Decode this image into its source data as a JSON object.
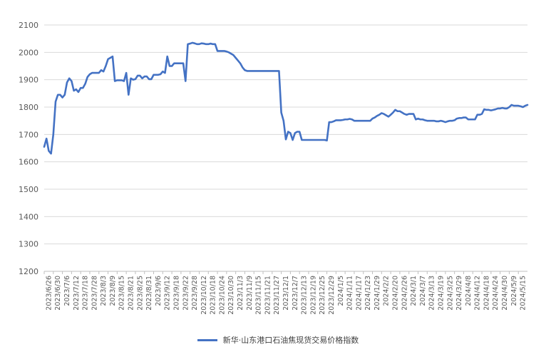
{
  "chart_data": {
    "type": "line",
    "title": "",
    "xlabel": "",
    "ylabel": "",
    "ylim": [
      1200,
      2100
    ],
    "yticks": [
      1200,
      1300,
      1400,
      1500,
      1600,
      1700,
      1800,
      1900,
      2000,
      2100
    ],
    "grid": true,
    "legend_position": "bottom",
    "colors": {
      "series": "#4472C4",
      "grid": "#D9D9D9",
      "axis": "#BFBFBF"
    },
    "x_tick_labels": [
      "2023/6/26",
      "2023/6/30",
      "2023/7/6",
      "2023/7/12",
      "2023/7/18",
      "2023/7/28",
      "2023/8/3",
      "2023/8/9",
      "2023/8/15",
      "2023/8/21",
      "2023/8/25",
      "2023/8/31",
      "2023/9/6",
      "2023/9/12",
      "2023/9/18",
      "2023/9/22",
      "2023/9/28",
      "2023/10/12",
      "2023/10/18",
      "2023/10/24",
      "2023/10/30",
      "2023/11/3",
      "2023/11/9",
      "2023/11/15",
      "2023/11/21",
      "2023/11/27",
      "2023/12/1",
      "2023/12/7",
      "2023/12/13",
      "2023/12/19",
      "2023/12/25",
      "2023/12/29",
      "2024/1/5",
      "2024/1/11",
      "2024/1/17",
      "2024/1/23",
      "2024/1/29",
      "2024/2/2",
      "2024/2/20",
      "2024/2/26",
      "2024/3/1",
      "2024/3/7",
      "2024/3/13",
      "2024/3/19",
      "2024/3/25",
      "2024/3/29",
      "2024/4/8",
      "2024/4/12",
      "2024/4/18",
      "2024/4/24",
      "2024/4/30",
      "2024/5/9",
      "2024/5/15"
    ],
    "series": [
      {
        "name": "新华·山东港口石油焦现货交易价格指数",
        "values": [
          1655,
          1685,
          1640,
          1630,
          1700,
          1820,
          1845,
          1845,
          1835,
          1845,
          1890,
          1905,
          1895,
          1860,
          1865,
          1855,
          1870,
          1870,
          1885,
          1910,
          1920,
          1925,
          1925,
          1925,
          1925,
          1935,
          1930,
          1950,
          1975,
          1980,
          1985,
          1895,
          1898,
          1898,
          1898,
          1895,
          1925,
          1845,
          1905,
          1900,
          1902,
          1915,
          1915,
          1905,
          1912,
          1912,
          1902,
          1902,
          1918,
          1918,
          1918,
          1920,
          1930,
          1925,
          1985,
          1950,
          1950,
          1960,
          1960,
          1960,
          1960,
          1960,
          1895,
          2030,
          2032,
          2035,
          2033,
          2030,
          2030,
          2033,
          2032,
          2030,
          2030,
          2032,
          2030,
          2030,
          2005,
          2005,
          2005,
          2005,
          2003,
          2000,
          1995,
          1990,
          1980,
          1970,
          1960,
          1945,
          1935,
          1932,
          1932,
          1932,
          1932,
          1932,
          1932,
          1932,
          1932,
          1932,
          1932,
          1932,
          1932,
          1932,
          1932,
          1932,
          1780,
          1750,
          1682,
          1710,
          1705,
          1680,
          1705,
          1710,
          1710,
          1680,
          1680,
          1680,
          1680,
          1680,
          1680,
          1680,
          1680,
          1680,
          1680,
          1680,
          1678,
          1745,
          1745,
          1748,
          1752,
          1752,
          1752,
          1753,
          1755,
          1755,
          1757,
          1755,
          1750,
          1750,
          1750,
          1750,
          1750,
          1750,
          1750,
          1750,
          1758,
          1762,
          1768,
          1772,
          1778,
          1775,
          1770,
          1765,
          1772,
          1780,
          1790,
          1785,
          1785,
          1780,
          1775,
          1772,
          1775,
          1775,
          1775,
          1755,
          1758,
          1755,
          1755,
          1752,
          1750,
          1750,
          1750,
          1750,
          1748,
          1748,
          1750,
          1748,
          1745,
          1748,
          1750,
          1750,
          1752,
          1758,
          1760,
          1760,
          1762,
          1762,
          1755,
          1755,
          1755,
          1755,
          1772,
          1772,
          1775,
          1792,
          1790,
          1790,
          1788,
          1790,
          1792,
          1795,
          1795,
          1797,
          1795,
          1795,
          1800,
          1808,
          1805,
          1805,
          1805,
          1803,
          1800,
          1805,
          1808
        ]
      }
    ]
  }
}
